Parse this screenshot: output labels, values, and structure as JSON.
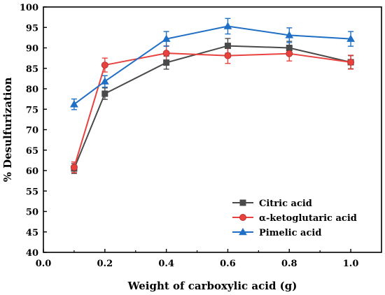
{
  "chart_data": {
    "type": "line",
    "title": "",
    "xlabel": "Weight of carboxylic acid (g)",
    "ylabel": "% Desulfurization",
    "xlim": [
      0.0,
      1.1
    ],
    "ylim": [
      40,
      100
    ],
    "xticks": [
      0.0,
      0.2,
      0.4,
      0.6,
      0.8,
      1.0
    ],
    "xtick_labels": [
      "0.0",
      "0.2",
      "0.4",
      "0.6",
      "0.8",
      "1.0"
    ],
    "yticks": [
      40,
      45,
      50,
      55,
      60,
      65,
      70,
      75,
      80,
      85,
      90,
      95,
      100
    ],
    "ytick_labels": [
      "40",
      "45",
      "50",
      "55",
      "60",
      "65",
      "70",
      "75",
      "80",
      "85",
      "90",
      "95",
      "100"
    ],
    "x": [
      0.1,
      0.2,
      0.4,
      0.6,
      0.8,
      1.0
    ],
    "grid": false,
    "legend_position": "bottom-right",
    "series": [
      {
        "name": "Citric acid",
        "marker": "square",
        "color": "#4a4a4a",
        "values": [
          60.5,
          78.8,
          86.4,
          90.5,
          90.0,
          86.5
        ],
        "errors": [
          1.2,
          1.4,
          1.6,
          1.8,
          1.6,
          1.6
        ]
      },
      {
        "name": "α-ketoglutaric acid",
        "marker": "circle",
        "color": "#e8423f",
        "values": [
          60.8,
          85.8,
          88.7,
          88.1,
          88.6,
          86.5
        ],
        "errors": [
          1.3,
          1.7,
          1.8,
          1.9,
          1.8,
          1.7
        ]
      },
      {
        "name": "Pimelic acid",
        "marker": "triangle",
        "color": "#1f6fc5",
        "values": [
          76.2,
          81.8,
          92.2,
          95.3,
          93.1,
          92.2
        ],
        "errors": [
          1.3,
          1.4,
          1.8,
          1.9,
          1.8,
          1.8
        ]
      }
    ]
  }
}
